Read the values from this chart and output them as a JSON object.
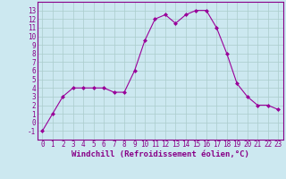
{
  "x": [
    0,
    1,
    2,
    3,
    4,
    5,
    6,
    7,
    8,
    9,
    10,
    11,
    12,
    13,
    14,
    15,
    16,
    17,
    18,
    19,
    20,
    21,
    22,
    23
  ],
  "y": [
    -1,
    1,
    3,
    4,
    4,
    4,
    4,
    3.5,
    3.5,
    6,
    9.5,
    12,
    12.5,
    11.5,
    12.5,
    13,
    13,
    11,
    8,
    4.5,
    3,
    2,
    2,
    1.5
  ],
  "line_color": "#990099",
  "marker": "D",
  "marker_size": 2,
  "xlabel": "Windchill (Refroidissement éolien,°C)",
  "xlim": [
    -0.5,
    23.5
  ],
  "ylim": [
    -2,
    14
  ],
  "yticks": [
    -1,
    0,
    1,
    2,
    3,
    4,
    5,
    6,
    7,
    8,
    9,
    10,
    11,
    12,
    13
  ],
  "xticks": [
    0,
    1,
    2,
    3,
    4,
    5,
    6,
    7,
    8,
    9,
    10,
    11,
    12,
    13,
    14,
    15,
    16,
    17,
    18,
    19,
    20,
    21,
    22,
    23
  ],
  "bg_color": "#cce8f0",
  "grid_color": "#aacccc",
  "label_color": "#880088",
  "tick_fontsize": 5.5,
  "xlabel_fontsize": 6.5
}
